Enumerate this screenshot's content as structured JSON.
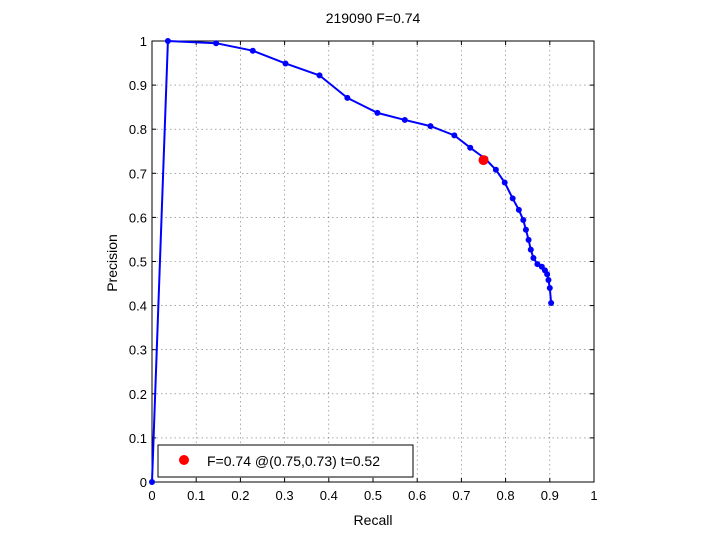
{
  "chart_data": {
    "type": "line",
    "title": "219090 F=0.74",
    "xlabel": "Recall",
    "ylabel": "Precision",
    "xlim": [
      0,
      1
    ],
    "ylim": [
      0,
      1
    ],
    "grid": true,
    "x_ticks": [
      "0",
      "0.1",
      "0.2",
      "0.3",
      "0.4",
      "0.5",
      "0.6",
      "0.7",
      "0.8",
      "0.9",
      "1"
    ],
    "y_ticks": [
      "0",
      "0.1",
      "0.2",
      "0.3",
      "0.4",
      "0.5",
      "0.6",
      "0.7",
      "0.8",
      "0.9",
      "1"
    ],
    "series": [
      {
        "color": "#0000ff",
        "points": [
          [
            0.0,
            0.0
          ],
          [
            0.036,
            1.0
          ],
          [
            0.145,
            0.995
          ],
          [
            0.228,
            0.978
          ],
          [
            0.302,
            0.949
          ],
          [
            0.379,
            0.922
          ],
          [
            0.442,
            0.871
          ],
          [
            0.51,
            0.837
          ],
          [
            0.572,
            0.821
          ],
          [
            0.63,
            0.807
          ],
          [
            0.684,
            0.786
          ],
          [
            0.72,
            0.758
          ],
          [
            0.754,
            0.733
          ],
          [
            0.778,
            0.708
          ],
          [
            0.798,
            0.679
          ],
          [
            0.816,
            0.643
          ],
          [
            0.83,
            0.617
          ],
          [
            0.84,
            0.594
          ],
          [
            0.846,
            0.572
          ],
          [
            0.852,
            0.549
          ],
          [
            0.857,
            0.527
          ],
          [
            0.863,
            0.508
          ],
          [
            0.872,
            0.494
          ],
          [
            0.882,
            0.488
          ],
          [
            0.889,
            0.48
          ],
          [
            0.894,
            0.471
          ],
          [
            0.897,
            0.458
          ],
          [
            0.9,
            0.44
          ],
          [
            0.903,
            0.406
          ]
        ]
      }
    ],
    "highlight_point": {
      "x": 0.75,
      "y": 0.73,
      "color": "#ff0000"
    },
    "legend": {
      "position": "bottom-left",
      "label": "F=0.74 @(0.75,0.73) t=0.52",
      "marker_color": "#ff0000"
    }
  }
}
